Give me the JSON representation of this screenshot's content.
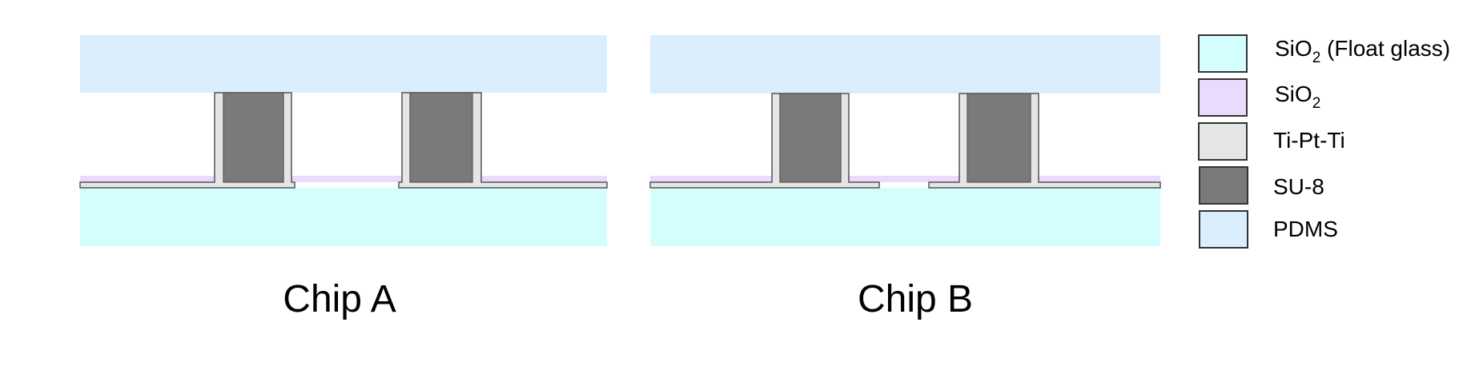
{
  "colors": {
    "float_glass": "#d4fefe",
    "sio2": "#eadafb",
    "ti_pt_ti": "#e5e5e5",
    "su8": "#7a7a7a",
    "pdms": "#dbeefe",
    "outline": "#555555"
  },
  "chips": [
    {
      "label": "Chip A"
    },
    {
      "label": "Chip B"
    }
  ],
  "legend": [
    {
      "material": "SiO",
      "subscript": "2",
      "suffix": " (Float glass)",
      "color_key": "float_glass"
    },
    {
      "material": "SiO",
      "subscript": "2",
      "suffix": "",
      "color_key": "sio2"
    },
    {
      "material": "Ti-Pt-Ti",
      "subscript": "",
      "suffix": "",
      "color_key": "ti_pt_ti"
    },
    {
      "material": "SU-8",
      "subscript": "",
      "suffix": "",
      "color_key": "su8"
    },
    {
      "material": "PDMS",
      "subscript": "",
      "suffix": "",
      "color_key": "pdms"
    }
  ]
}
